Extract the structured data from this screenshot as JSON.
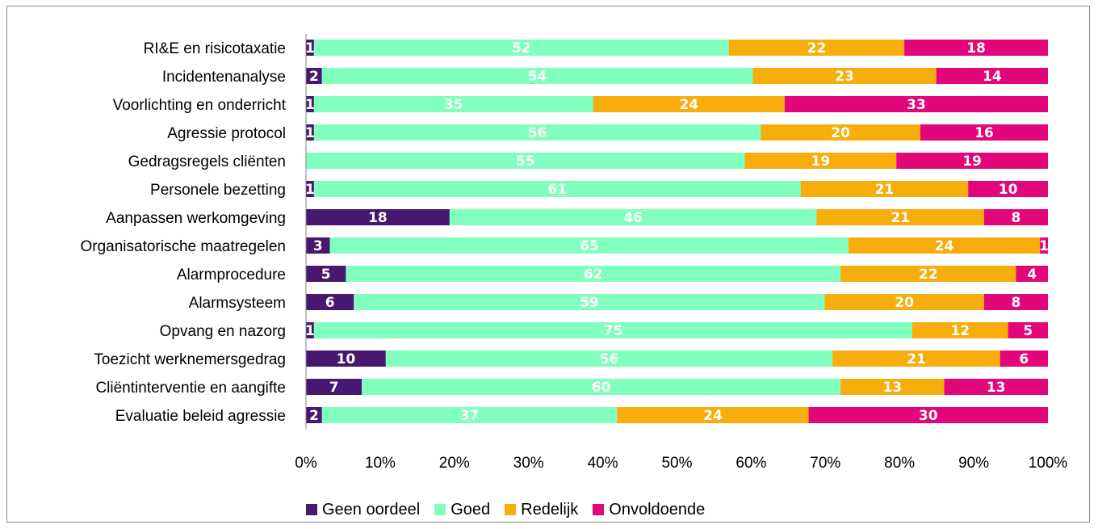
{
  "chart_data": {
    "type": "bar",
    "orientation": "horizontal",
    "stacked": "percent",
    "title": "",
    "xlabel": "",
    "ylabel": "",
    "xlim": [
      0,
      100
    ],
    "x_ticks": [
      "0%",
      "10%",
      "20%",
      "30%",
      "40%",
      "50%",
      "60%",
      "70%",
      "80%",
      "90%",
      "100%"
    ],
    "grid": false,
    "legend_position": "bottom",
    "categories": [
      "RI&E en risicotaxatie",
      "Incidentenanalyse",
      "Voorlichting en onderricht",
      "Agressie protocol",
      "Gedragsregels cliënten",
      "Personele bezetting",
      "Aanpassen werkomgeving",
      "Organisatorische maatregelen",
      "Alarmprocedure",
      "Alarmsysteem",
      "Opvang en nazorg",
      "Toezicht werknemersgedrag",
      "Cliëntinterventie en aangifte",
      "Evaluatie beleid agressie"
    ],
    "series": [
      {
        "name": "Geen oordeel",
        "color": "#48176f",
        "values": [
          1,
          2,
          1,
          1,
          0,
          1,
          18,
          3,
          5,
          6,
          1,
          10,
          7,
          2
        ]
      },
      {
        "name": "Goed",
        "color": "#80ffbe",
        "values": [
          52,
          54,
          35,
          56,
          55,
          61,
          46,
          65,
          62,
          59,
          75,
          56,
          60,
          37
        ]
      },
      {
        "name": "Redelijk",
        "color": "#f7ad0b",
        "values": [
          22,
          23,
          24,
          20,
          19,
          21,
          21,
          24,
          22,
          20,
          12,
          21,
          13,
          24
        ]
      },
      {
        "name": "Onvoldoende",
        "color": "#e2067a",
        "values": [
          18,
          14,
          33,
          16,
          19,
          10,
          8,
          1,
          4,
          8,
          5,
          6,
          13,
          30
        ]
      }
    ]
  }
}
